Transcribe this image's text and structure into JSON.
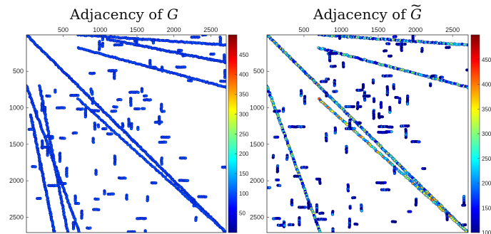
{
  "chart_data": [
    {
      "type": "scatter",
      "title_text": "Adjacency of",
      "title_symbol": "G",
      "title_tilde": false,
      "xlim": [
        1,
        2710
      ],
      "ylim": [
        1,
        2710
      ],
      "x_ticks": [
        "500",
        "1000",
        "1500",
        "2000",
        "2500"
      ],
      "x_tick_values": [
        500,
        1000,
        1500,
        2000,
        2500
      ],
      "y_ticks": [
        "500",
        "1000",
        "1500",
        "2000",
        "2500"
      ],
      "y_tick_values": [
        500,
        1000,
        1500,
        2000,
        2500
      ],
      "colorbar": {
        "ticks": [
          "50",
          "100",
          "150",
          "200",
          "250",
          "300",
          "350",
          "400",
          "450"
        ],
        "tick_values": [
          50,
          100,
          150,
          200,
          250,
          300,
          350,
          400,
          450
        ],
        "range": [
          1,
          500
        ],
        "colormap": "jet"
      },
      "structures": [
        {
          "kind": "diagonal",
          "x_start": 0,
          "y_start": 0,
          "x_end": 2710,
          "y_end": 2710,
          "value": 40
        },
        {
          "kind": "band",
          "x_start": 700,
          "y_start": 0,
          "x_end": 2710,
          "y_end": 140,
          "value": 40
        },
        {
          "kind": "band",
          "x_start": 700,
          "y_start": 180,
          "x_end": 2710,
          "y_end": 720,
          "value": 40
        },
        {
          "kind": "band",
          "x_start": 1100,
          "y_start": 60,
          "x_end": 2710,
          "y_end": 380,
          "value": 40
        },
        {
          "kind": "band",
          "x_start": 0,
          "y_start": 700,
          "x_end": 720,
          "y_end": 2710,
          "value": 40
        },
        {
          "kind": "band",
          "x_start": 180,
          "y_start": 700,
          "x_end": 560,
          "y_end": 2710,
          "value": 40
        },
        {
          "kind": "band",
          "x_start": 60,
          "y_start": 1100,
          "x_end": 380,
          "y_end": 2710,
          "value": 40
        },
        {
          "kind": "band",
          "x_start": 700,
          "y_start": 880,
          "x_end": 2710,
          "y_end": 2710,
          "value": 40
        },
        {
          "kind": "cluster",
          "x_start": 700,
          "y_start": 0,
          "x_end": 2710,
          "y_end": 720,
          "value": 40
        },
        {
          "kind": "cluster",
          "x_start": 0,
          "y_start": 700,
          "x_end": 720,
          "y_end": 2710,
          "value": 40
        },
        {
          "kind": "cluster",
          "x_start": 700,
          "y_start": 720,
          "x_end": 1900,
          "y_end": 1300,
          "value": 40
        },
        {
          "kind": "cluster",
          "x_start": 700,
          "y_start": 1300,
          "x_end": 2710,
          "y_end": 2710,
          "value": 40
        }
      ]
    },
    {
      "type": "scatter",
      "title_text": "Adjacency of",
      "title_symbol": "G",
      "title_tilde": true,
      "xlim": [
        1,
        2710
      ],
      "ylim": [
        1,
        2710
      ],
      "x_ticks": [
        "500",
        "1000",
        "1500",
        "2000",
        "2500"
      ],
      "x_tick_values": [
        500,
        1000,
        1500,
        2000,
        2500
      ],
      "y_ticks": [
        "500",
        "1000",
        "1500",
        "2000",
        "2500"
      ],
      "y_tick_values": [
        500,
        1000,
        1500,
        2000,
        2500
      ],
      "colorbar": {
        "ticks": [
          "100",
          "150",
          "200",
          "250",
          "300",
          "350",
          "400",
          "450"
        ],
        "tick_values": [
          100,
          150,
          200,
          250,
          300,
          350,
          400,
          450
        ],
        "range": [
          100,
          500
        ],
        "colormap": "jet"
      },
      "structures": [
        {
          "kind": "diagonal",
          "x_start": 0,
          "y_start": 0,
          "x_end": 2710,
          "y_end": 2710,
          "value": 260
        },
        {
          "kind": "band",
          "x_start": 700,
          "y_start": 0,
          "x_end": 2710,
          "y_end": 140,
          "value": 230
        },
        {
          "kind": "band",
          "x_start": 700,
          "y_start": 180,
          "x_end": 2710,
          "y_end": 720,
          "value": 230
        },
        {
          "kind": "band",
          "x_start": 0,
          "y_start": 700,
          "x_end": 720,
          "y_end": 2710,
          "value": 230
        },
        {
          "kind": "band",
          "x_start": 700,
          "y_start": 880,
          "x_end": 2710,
          "y_end": 2710,
          "value": 300
        },
        {
          "kind": "cluster",
          "x_start": 700,
          "y_start": 0,
          "x_end": 2710,
          "y_end": 720,
          "value": 120
        },
        {
          "kind": "cluster",
          "x_start": 0,
          "y_start": 700,
          "x_end": 720,
          "y_end": 2710,
          "value": 120
        },
        {
          "kind": "cluster",
          "x_start": 700,
          "y_start": 720,
          "x_end": 1900,
          "y_end": 1300,
          "value": 120
        },
        {
          "kind": "cluster",
          "x_start": 700,
          "y_start": 1300,
          "x_end": 2710,
          "y_end": 2710,
          "value": 120
        }
      ]
    }
  ]
}
